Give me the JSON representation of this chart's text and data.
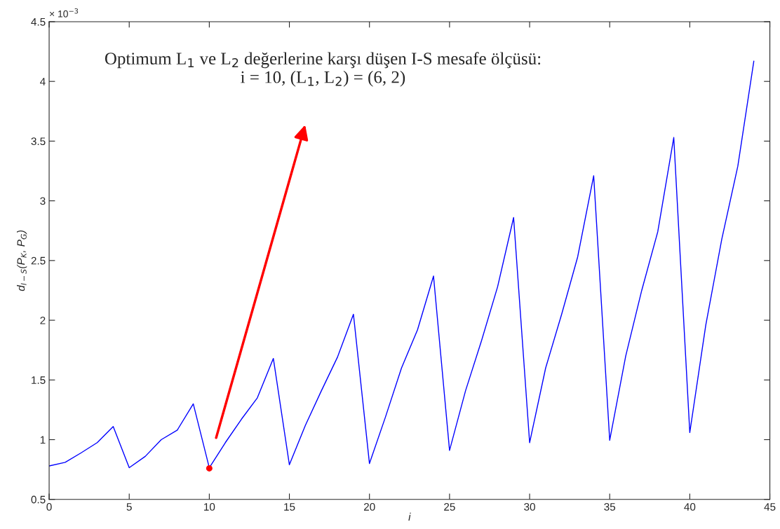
{
  "chart_data": {
    "type": "line",
    "xlabel": "i",
    "ylabel": "d$_{I−S}$(P$_{K}$, P$_{G}$)",
    "x": [
      0,
      1,
      2,
      3,
      4,
      5,
      6,
      7,
      8,
      9,
      10,
      11,
      12,
      13,
      14,
      15,
      16,
      17,
      18,
      19,
      20,
      21,
      22,
      23,
      24,
      25,
      26,
      27,
      28,
      29,
      30,
      31,
      32,
      33,
      34,
      35,
      36,
      37,
      38,
      39,
      40,
      41,
      42,
      43,
      44
    ],
    "series": [
      {
        "color": "#0000ff",
        "values": [
          0.78,
          0.81,
          0.89,
          0.975,
          1.11,
          0.765,
          0.86,
          1.0,
          1.08,
          1.3,
          0.765,
          0.975,
          1.17,
          1.35,
          1.68,
          0.79,
          1.12,
          1.41,
          1.69,
          2.05,
          0.8,
          1.19,
          1.6,
          1.92,
          2.37,
          0.91,
          1.41,
          1.83,
          2.28,
          2.86,
          0.975,
          1.6,
          2.05,
          2.53,
          3.21,
          0.995,
          1.7,
          2.25,
          2.74,
          3.53,
          1.06,
          1.96,
          2.68,
          3.29,
          4.17
        ]
      },
      {
        "type": "scatter",
        "color": "#ff0000",
        "x": [
          10
        ],
        "values": [
          0.76
        ]
      }
    ],
    "annotations": [
      "× 10$^{−3}$",
      "Optimum L$_{1}$ ve L$_{2}$ değerlerine karşı düşen I-S mesafe ölçüsü:\ni = 10, (L$_{1}$, L$_{2}$) = (6, 2)"
    ],
    "xlim": [
      0,
      45
    ],
    "xticks": [
      0,
      5,
      10,
      15,
      20,
      25,
      30,
      35,
      40,
      45
    ],
    "ylim": [
      0.5,
      4.5
    ],
    "yticks": [
      {
        "value": 0.5,
        "label": "0.5"
      },
      1,
      {
        "value": 1.5,
        "label": "1.5"
      },
      2,
      {
        "value": 2.5,
        "label": "2.5"
      },
      3,
      {
        "value": 3.5,
        "label": "3.5"
      },
      4,
      {
        "value": 4.5,
        "label": "4.5"
      }
    ],
    "grid": false
  }
}
